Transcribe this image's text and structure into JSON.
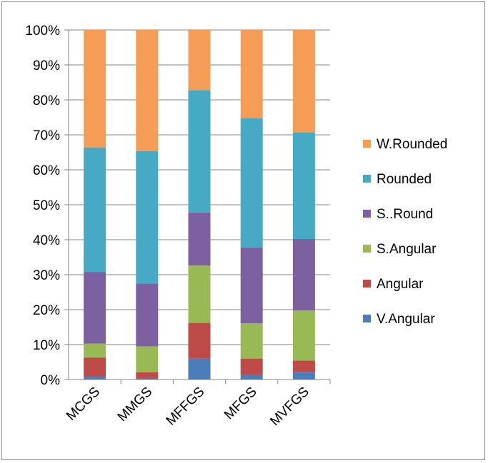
{
  "chart_data": {
    "type": "bar",
    "stacked": true,
    "percent": true,
    "categories": [
      "MCGS",
      "MMGS",
      "MFFGS",
      "MFGS",
      "MVFGS"
    ],
    "series": [
      {
        "name": "V.Angular",
        "color": "#4a7ebb",
        "values": [
          0.8,
          0.3,
          6.0,
          1.3,
          2.2
        ]
      },
      {
        "name": "Angular",
        "color": "#be4b48",
        "values": [
          5.5,
          1.8,
          10.2,
          4.7,
          3.2
        ]
      },
      {
        "name": "S.Angular",
        "color": "#98b954",
        "values": [
          4.0,
          7.4,
          16.4,
          10.1,
          14.4
        ]
      },
      {
        "name": "S..Round",
        "color": "#7d60a0",
        "values": [
          20.5,
          18.0,
          15.2,
          21.7,
          20.4
        ]
      },
      {
        "name": "Rounded",
        "color": "#46aac5",
        "values": [
          35.6,
          37.8,
          35.0,
          36.9,
          30.5
        ]
      },
      {
        "name": "W.Rounded",
        "color": "#f59d56",
        "values": [
          33.6,
          34.7,
          17.2,
          25.3,
          29.3
        ]
      }
    ],
    "yticks": [
      "0%",
      "10%",
      "20%",
      "30%",
      "40%",
      "50%",
      "60%",
      "70%",
      "80%",
      "90%",
      "100%"
    ],
    "ylim": [
      0,
      100
    ],
    "grid": true,
    "legend": "right"
  }
}
